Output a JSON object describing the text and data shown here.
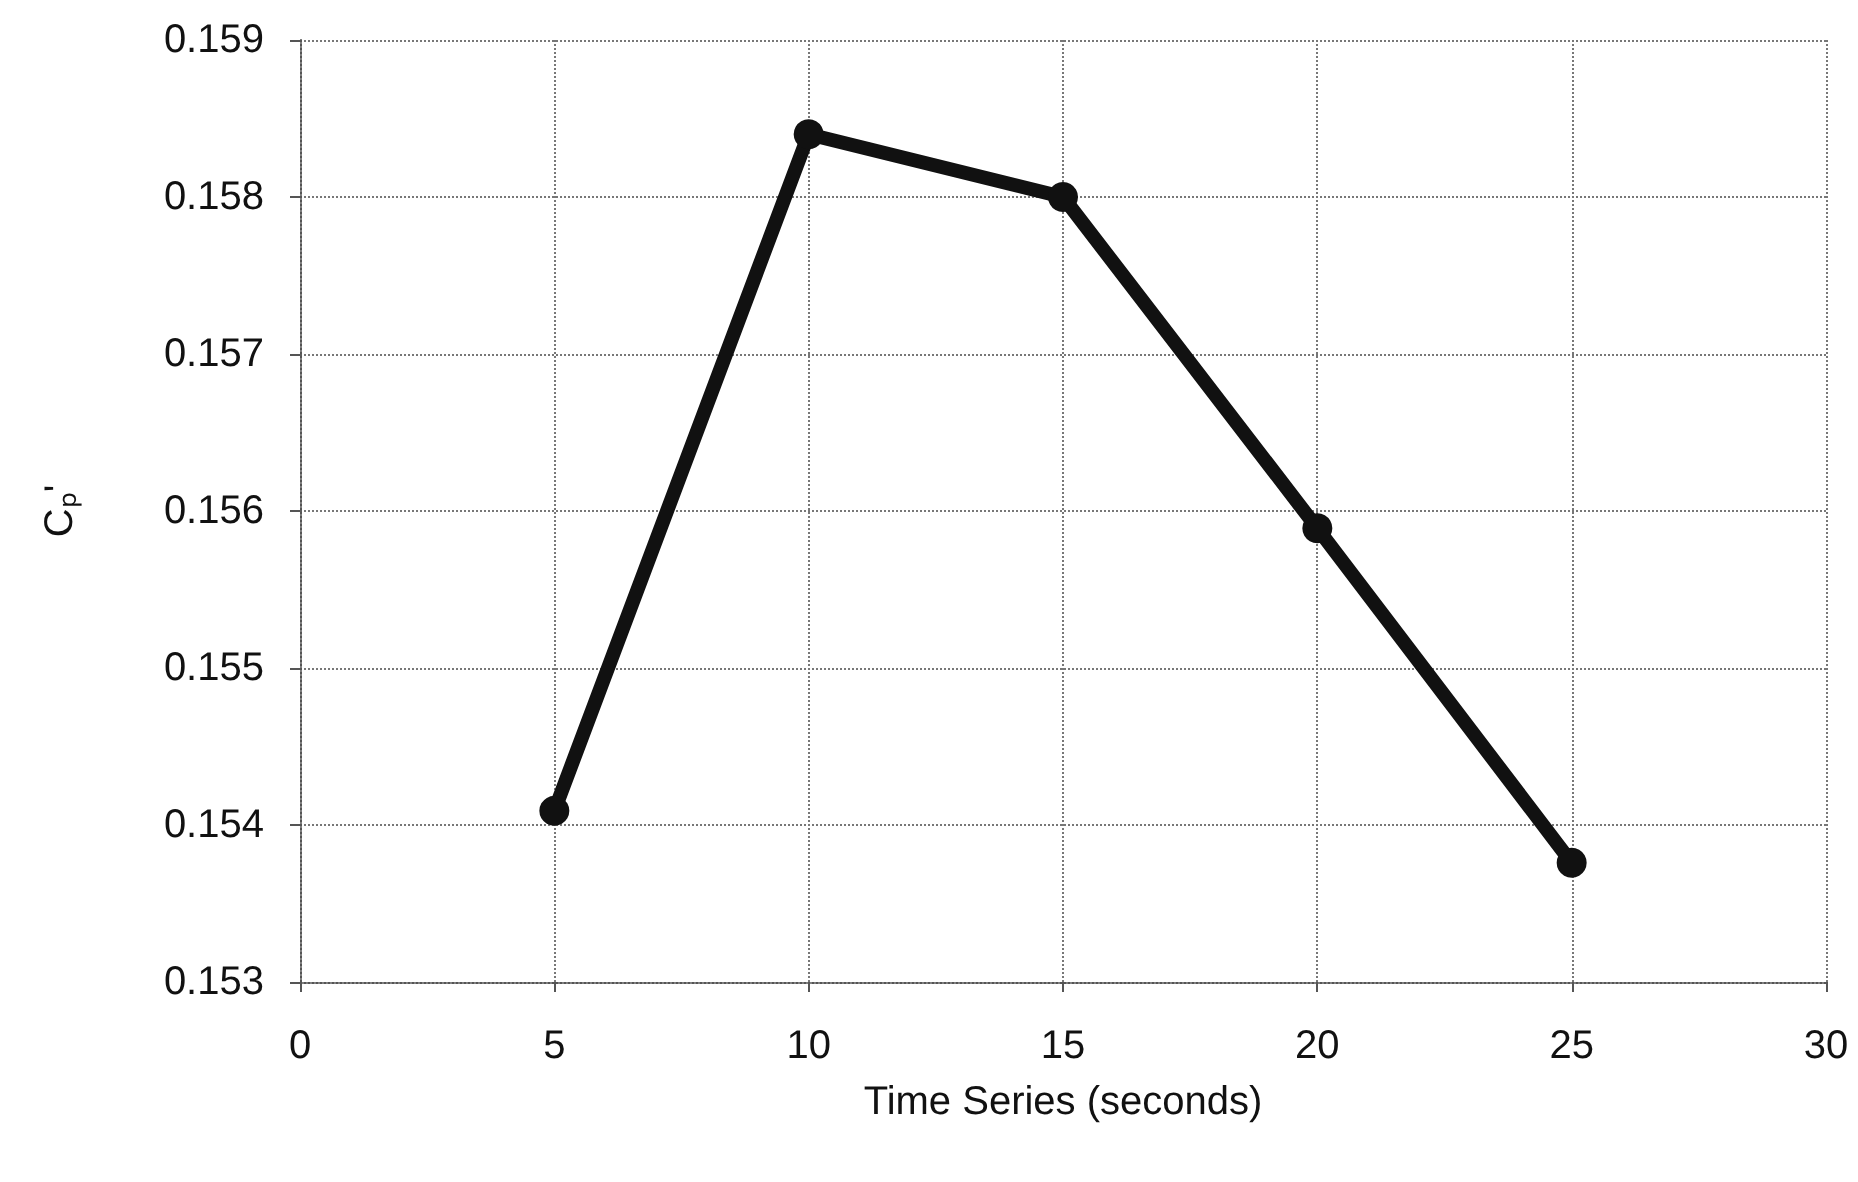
{
  "chart_data": {
    "type": "line",
    "xlabel": "Time Series (seconds)",
    "ylabel": "Cₚ'",
    "x": [
      5,
      10,
      15,
      20,
      25
    ],
    "series": [
      {
        "color": "#111111",
        "values": [
          0.15409,
          0.1584,
          0.158,
          0.15589,
          0.15376
        ]
      }
    ],
    "xlim": [
      0,
      30
    ],
    "xticks": [
      0,
      5,
      10,
      15,
      20,
      25,
      30
    ],
    "ylim": [
      0.153,
      0.159
    ],
    "yticks": [
      0.153,
      0.154,
      0.155,
      0.156,
      0.157,
      0.158,
      0.159
    ],
    "grid": true,
    "marker": "circle",
    "line_style": "solid"
  }
}
